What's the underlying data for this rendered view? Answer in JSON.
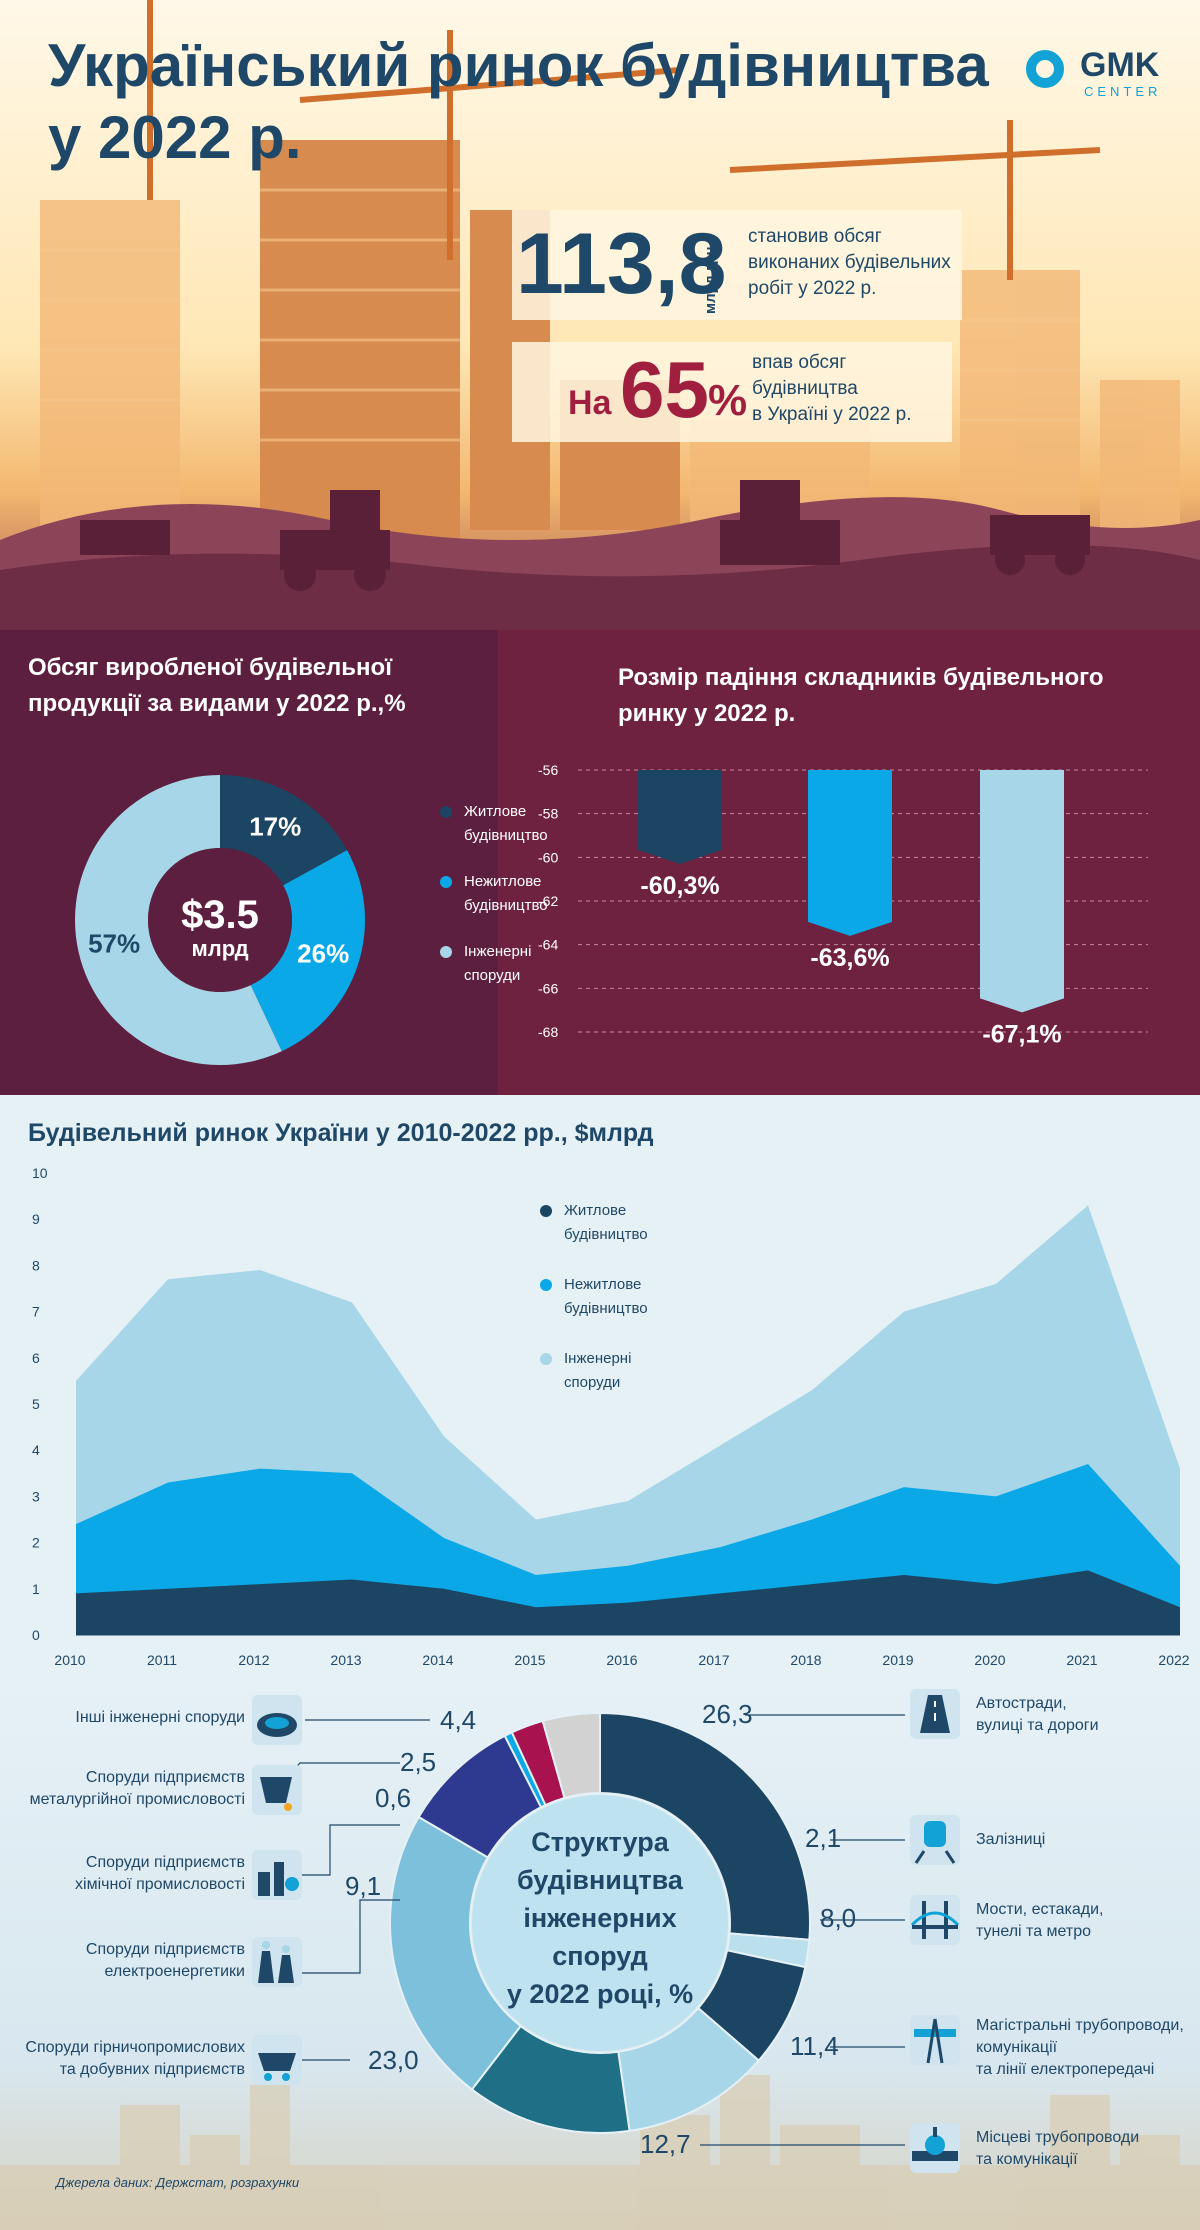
{
  "header": {
    "title_line1": "Український ринок будівництва",
    "title_line2": "у 2022 р.",
    "logo_main": "GMK",
    "logo_sub": "CENTER",
    "stat1_value": "113,8",
    "stat1_unit": "млрд грн",
    "stat1_text": [
      "становив обсяг",
      "виконаних будівельних",
      "робіт у 2022 р."
    ],
    "stat2_prefix": "На",
    "stat2_value": "65",
    "stat2_pct": "%",
    "stat2_text": [
      "впав обсяг",
      "будівництва",
      "в Україні у 2022 р."
    ]
  },
  "colors": {
    "dark": "#1b4563",
    "mid": "#0aa8e6",
    "light": "#a7d6e8",
    "navy": "#1f4868"
  },
  "chart_data": [
    {
      "type": "pie",
      "title": "Обсяг виробленої будівельної продукції за видами у 2022 р.,%",
      "center_value": "$3.5",
      "center_unit": "млрд",
      "categories": [
        "Житлове будівництво",
        "Нежитлове будівництво",
        "Інженерні споруди"
      ],
      "legend_lines": [
        [
          "Житлове",
          "будівництво"
        ],
        [
          "Нежитлове",
          "будівництво"
        ],
        [
          "Інженерні",
          "споруди"
        ]
      ],
      "values": [
        17,
        26,
        57
      ],
      "labels": [
        "17%",
        "26%",
        "57%"
      ],
      "colors": [
        "#1b4563",
        "#0aa8e6",
        "#a7d6e8"
      ]
    },
    {
      "type": "bar",
      "title": "Розмір падіння складників будівельного ринку у 2022 р.",
      "categories": [
        "Житлове будівництво",
        "Нежитлове будівництво",
        "Інженерні споруди"
      ],
      "values": [
        -60.3,
        -63.6,
        -67.1
      ],
      "labels": [
        "-60,3%",
        "-63,6%",
        "-67,1%"
      ],
      "yticks": [
        -56,
        -58,
        -60,
        -62,
        -64,
        -66,
        -68
      ],
      "ylim": [
        -68,
        -56
      ],
      "colors": [
        "#1b4563",
        "#0aa8e6",
        "#a7d6e8"
      ]
    },
    {
      "type": "area",
      "title": "Будівельний ринок України у 2010-2022 рр., $млрд",
      "x": [
        "2010",
        "2011",
        "2012",
        "2013",
        "2014",
        "2015",
        "2016",
        "2017",
        "2018",
        "2019",
        "2020",
        "2021",
        "2022"
      ],
      "ylim": [
        0,
        10
      ],
      "yticks": [
        0,
        1,
        2,
        3,
        4,
        5,
        6,
        7,
        8,
        9,
        10
      ],
      "legend_placement": "top-center",
      "legend_lines": [
        [
          "Житлове",
          "будівництво"
        ],
        [
          "Нежитлове",
          "будівництво"
        ],
        [
          "Інженерні",
          "споруди"
        ]
      ],
      "series": [
        {
          "name": "Житлове будівництво",
          "color": "#1b4563",
          "values": [
            0.9,
            1.0,
            1.1,
            1.2,
            1.0,
            0.6,
            0.7,
            0.9,
            1.1,
            1.3,
            1.1,
            1.4,
            0.6
          ]
        },
        {
          "name": "Нежитлове будівництво",
          "color": "#0aa8e6",
          "values": [
            1.5,
            2.3,
            2.5,
            2.3,
            1.1,
            0.7,
            0.8,
            1.0,
            1.4,
            1.9,
            1.9,
            2.3,
            0.9
          ]
        },
        {
          "name": "Інженерні споруди",
          "color": "#a7d6e8",
          "values": [
            3.1,
            4.4,
            4.3,
            3.7,
            2.2,
            1.2,
            1.4,
            2.2,
            2.8,
            3.8,
            4.6,
            5.6,
            2.1
          ]
        }
      ]
    },
    {
      "type": "pie",
      "title": "Структура будівництва інженерних споруд у 2022 році, %",
      "title_lines": [
        "Структура",
        "будівництва",
        "інженерних",
        "споруд",
        "у 2022 році, %"
      ],
      "categories": [
        "Автостради, вулиці та дороги",
        "Залізниці",
        "Мости, естакади, тунелі та метро",
        "Магістральні трубопроводи, комунікації та лінії електропередачі",
        "Місцеві трубопроводи та комунікації",
        "Споруди гірничопромислових та добувних підприємств",
        "Споруди підприємств електроенергетики",
        "Споруди підприємств хімічної промисловості",
        "Споруди підприємств металургійної промисловості",
        "Інші інженерні споруди"
      ],
      "values": [
        26.3,
        2.1,
        8.0,
        11.4,
        12.7,
        23.0,
        9.1,
        0.6,
        2.5,
        4.4
      ],
      "labels": [
        "26,3",
        "2,1",
        "8,0",
        "11,4",
        "12,7",
        "23,0",
        "9,1",
        "0,6",
        "2,5",
        "4,4"
      ],
      "colors": [
        "#1b4563",
        "#bcdfee",
        "#1b4563",
        "#a7d6e8",
        "#1f6f86",
        "#7dc0dc",
        "#2d3a8f",
        "#0aa8e6",
        "#a8124f",
        "#d2d2d2"
      ]
    }
  ],
  "right_labels": [
    {
      "lines": [
        "Автостради,",
        "вулиці та дороги"
      ],
      "icon": "road-icon"
    },
    {
      "lines": [
        "Залізниці"
      ],
      "icon": "railway-icon"
    },
    {
      "lines": [
        "Мости, естакади,",
        "тунелі та метро"
      ],
      "icon": "bridge-icon"
    },
    {
      "lines": [
        "Магістральні трубопроводи,",
        "комунікації",
        "та лінії електропередачі"
      ],
      "icon": "pipeline-tower-icon"
    },
    {
      "lines": [
        "Місцеві трубопроводи",
        "та комунікації"
      ],
      "icon": "valve-icon"
    }
  ],
  "left_labels": [
    {
      "lines": [
        "Інші інженерні споруди"
      ],
      "icon": "stadium-icon"
    },
    {
      "lines": [
        "Споруди підприємств",
        "металургійної промисловості"
      ],
      "icon": "ladle-icon"
    },
    {
      "lines": [
        "Споруди підприємств",
        "хімічної промисловості"
      ],
      "icon": "chemical-plant-icon"
    },
    {
      "lines": [
        "Споруди підприємств",
        "електроенергетики"
      ],
      "icon": "power-plant-icon"
    },
    {
      "lines": [
        "Споруди гірничопромислових",
        "та добувних підприємств"
      ],
      "icon": "mine-cart-icon"
    }
  ],
  "source": "Джерела даних: Держстат, розрахунки"
}
